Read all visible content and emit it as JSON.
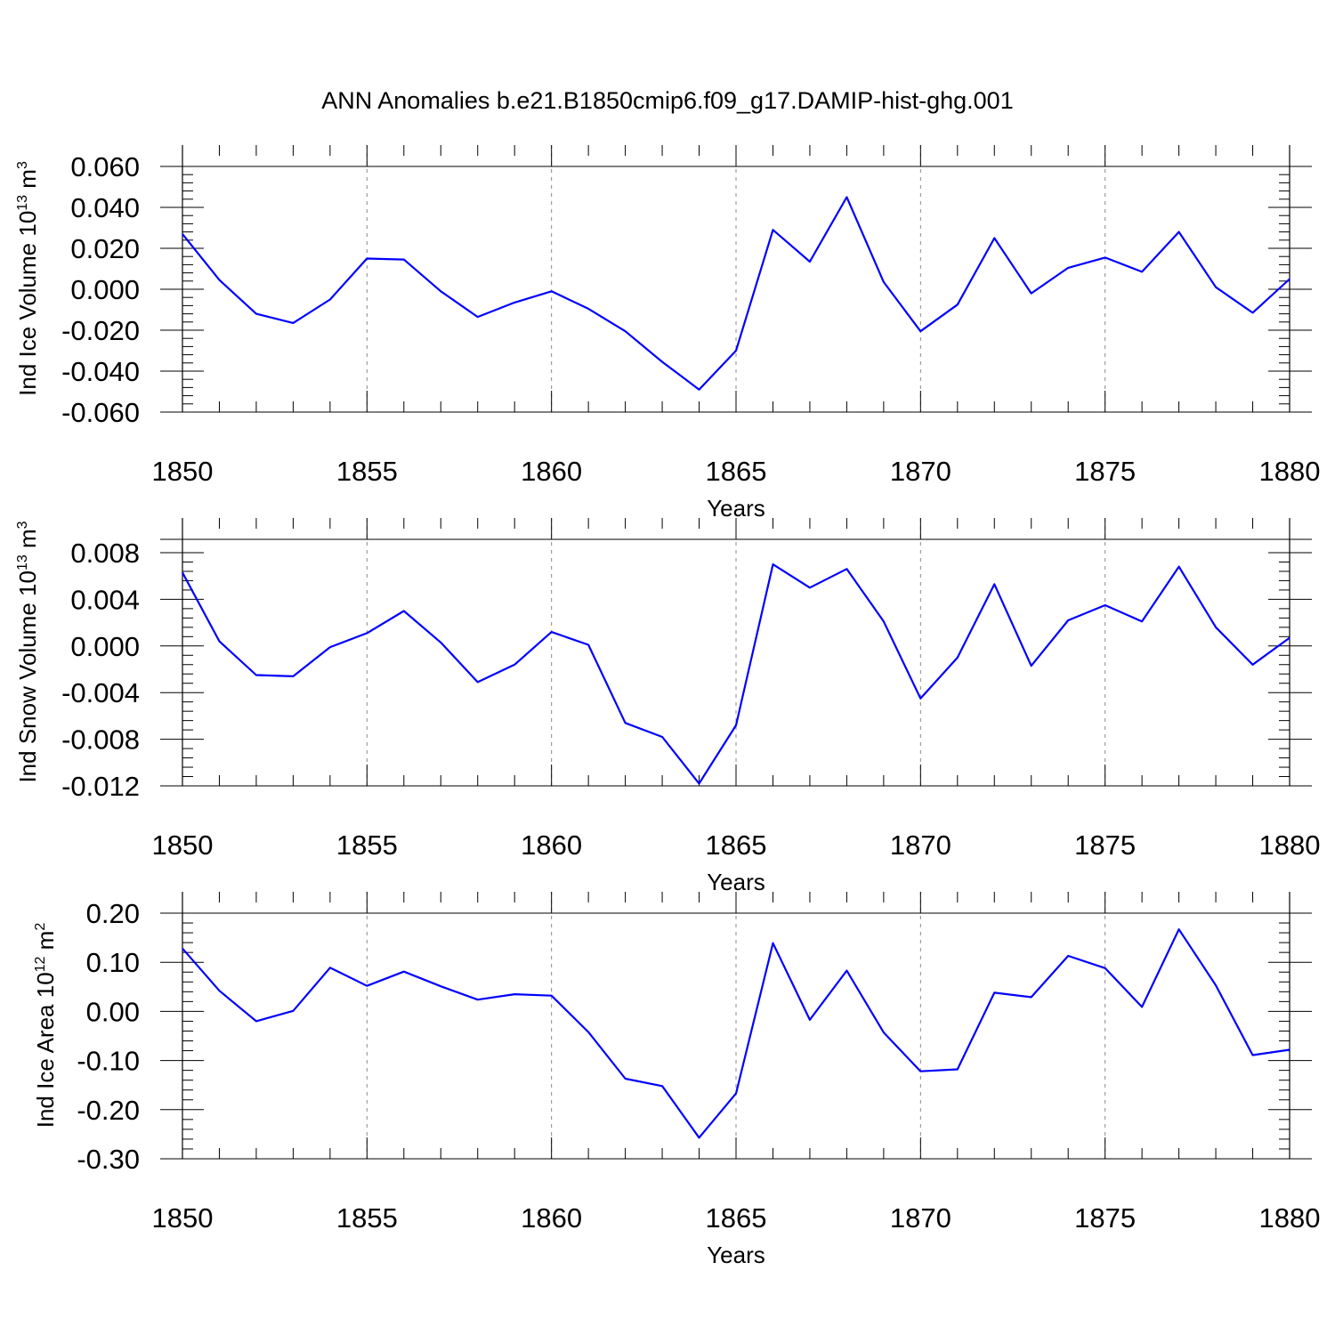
{
  "title": "ANN Anomalies b.e21.B1850cmip6.f09_g17.DAMIP-hist-ghg.001",
  "colors": {
    "line": "#0000ff",
    "axis": "#000000",
    "grid": "#888888"
  },
  "chart_data": [
    {
      "type": "line",
      "ylabel_main": "Ind Ice Volume 10",
      "ylabel_exp": "13",
      "ylabel_unit": " m",
      "ylabel_unit_exp": "3",
      "xlabel": "Years",
      "xlim": [
        1850,
        1880
      ],
      "ylim": [
        -0.06,
        0.06
      ],
      "yticks": [
        "0.060",
        "0.040",
        "0.020",
        "0.000",
        "-0.020",
        "-0.040",
        "-0.060"
      ],
      "ytick_values": [
        0.06,
        0.04,
        0.02,
        0.0,
        -0.02,
        -0.04,
        -0.06
      ],
      "xticks": [
        "1850",
        "1855",
        "1860",
        "1865",
        "1870",
        "1875",
        "1880"
      ],
      "xtick_values": [
        1850,
        1855,
        1860,
        1865,
        1870,
        1875,
        1880
      ],
      "grid_x": true,
      "x": [
        1850,
        1851,
        1852,
        1853,
        1854,
        1855,
        1856,
        1857,
        1858,
        1859,
        1860,
        1861,
        1862,
        1863,
        1864,
        1865,
        1866,
        1867,
        1868,
        1869,
        1870,
        1871,
        1872,
        1873,
        1874,
        1875,
        1876,
        1877,
        1878,
        1879,
        1880
      ],
      "values": [
        0.027,
        0.0045,
        -0.012,
        -0.0165,
        -0.005,
        0.015,
        0.0145,
        -0.001,
        -0.0135,
        -0.0065,
        -0.001,
        -0.0095,
        -0.0205,
        -0.0355,
        -0.049,
        -0.03,
        0.029,
        0.0135,
        0.045,
        0.0035,
        -0.0205,
        -0.0075,
        0.025,
        -0.002,
        0.0105,
        0.0155,
        0.0085,
        0.028,
        0.001,
        -0.0115,
        0.005
      ]
    },
    {
      "type": "line",
      "ylabel_main": "Ind Snow Volume 10",
      "ylabel_exp": "13",
      "ylabel_unit": " m",
      "ylabel_unit_exp": "3",
      "xlabel": "Years",
      "xlim": [
        1850,
        1880
      ],
      "ylim": [
        -0.012,
        0.009
      ],
      "yticks": [
        "0.008",
        "0.004",
        "0.000",
        "-0.004",
        "-0.008",
        "-0.012"
      ],
      "ytick_values": [
        0.008,
        0.004,
        0.0,
        -0.004,
        -0.008,
        -0.012
      ],
      "xticks": [
        "1850",
        "1855",
        "1860",
        "1865",
        "1870",
        "1875",
        "1880"
      ],
      "xtick_values": [
        1850,
        1855,
        1860,
        1865,
        1870,
        1875,
        1880
      ],
      "grid_x": true,
      "x": [
        1850,
        1851,
        1852,
        1853,
        1854,
        1855,
        1856,
        1857,
        1858,
        1859,
        1860,
        1861,
        1862,
        1863,
        1864,
        1865,
        1866,
        1867,
        1868,
        1869,
        1870,
        1871,
        1872,
        1873,
        1874,
        1875,
        1876,
        1877,
        1878,
        1879,
        1880
      ],
      "values": [
        0.0063,
        0.0004,
        -0.0025,
        -0.0026,
        -0.0001,
        0.0011,
        0.003,
        0.0003,
        -0.0031,
        -0.0016,
        0.0012,
        0.0001,
        -0.0066,
        -0.0078,
        -0.0118,
        -0.0068,
        0.007,
        0.005,
        0.0066,
        0.0021,
        -0.0045,
        -0.001,
        0.0053,
        -0.0017,
        0.0022,
        0.0035,
        0.0021,
        0.0068,
        0.0016,
        -0.0016,
        0.0007
      ]
    },
    {
      "type": "line",
      "ylabel_main": "Ind Ice Area 10",
      "ylabel_exp": "12",
      "ylabel_unit": " m",
      "ylabel_unit_exp": "2",
      "xlabel": "Years",
      "xlim": [
        1850,
        1880
      ],
      "ylim": [
        -0.3,
        0.2
      ],
      "yticks": [
        "0.20",
        "0.10",
        "0.00",
        "-0.10",
        "-0.20",
        "-0.30"
      ],
      "ytick_values": [
        0.2,
        0.1,
        0.0,
        -0.1,
        -0.2,
        -0.3
      ],
      "xticks": [
        "1850",
        "1855",
        "1860",
        "1865",
        "1870",
        "1875",
        "1880"
      ],
      "xtick_values": [
        1850,
        1855,
        1860,
        1865,
        1870,
        1875,
        1880
      ],
      "grid_x": true,
      "x": [
        1850,
        1851,
        1852,
        1853,
        1854,
        1855,
        1856,
        1857,
        1858,
        1859,
        1860,
        1861,
        1862,
        1863,
        1864,
        1865,
        1866,
        1867,
        1868,
        1869,
        1870,
        1871,
        1872,
        1873,
        1874,
        1875,
        1876,
        1877,
        1878,
        1879,
        1880
      ],
      "values": [
        0.128,
        0.042,
        -0.02,
        0.001,
        0.089,
        0.052,
        0.081,
        0.051,
        0.024,
        0.035,
        0.032,
        -0.042,
        -0.137,
        -0.152,
        -0.257,
        -0.167,
        0.139,
        -0.017,
        0.083,
        -0.043,
        -0.122,
        -0.118,
        0.038,
        0.029,
        0.113,
        0.088,
        0.009,
        0.167,
        0.053,
        -0.089,
        -0.078
      ]
    }
  ]
}
